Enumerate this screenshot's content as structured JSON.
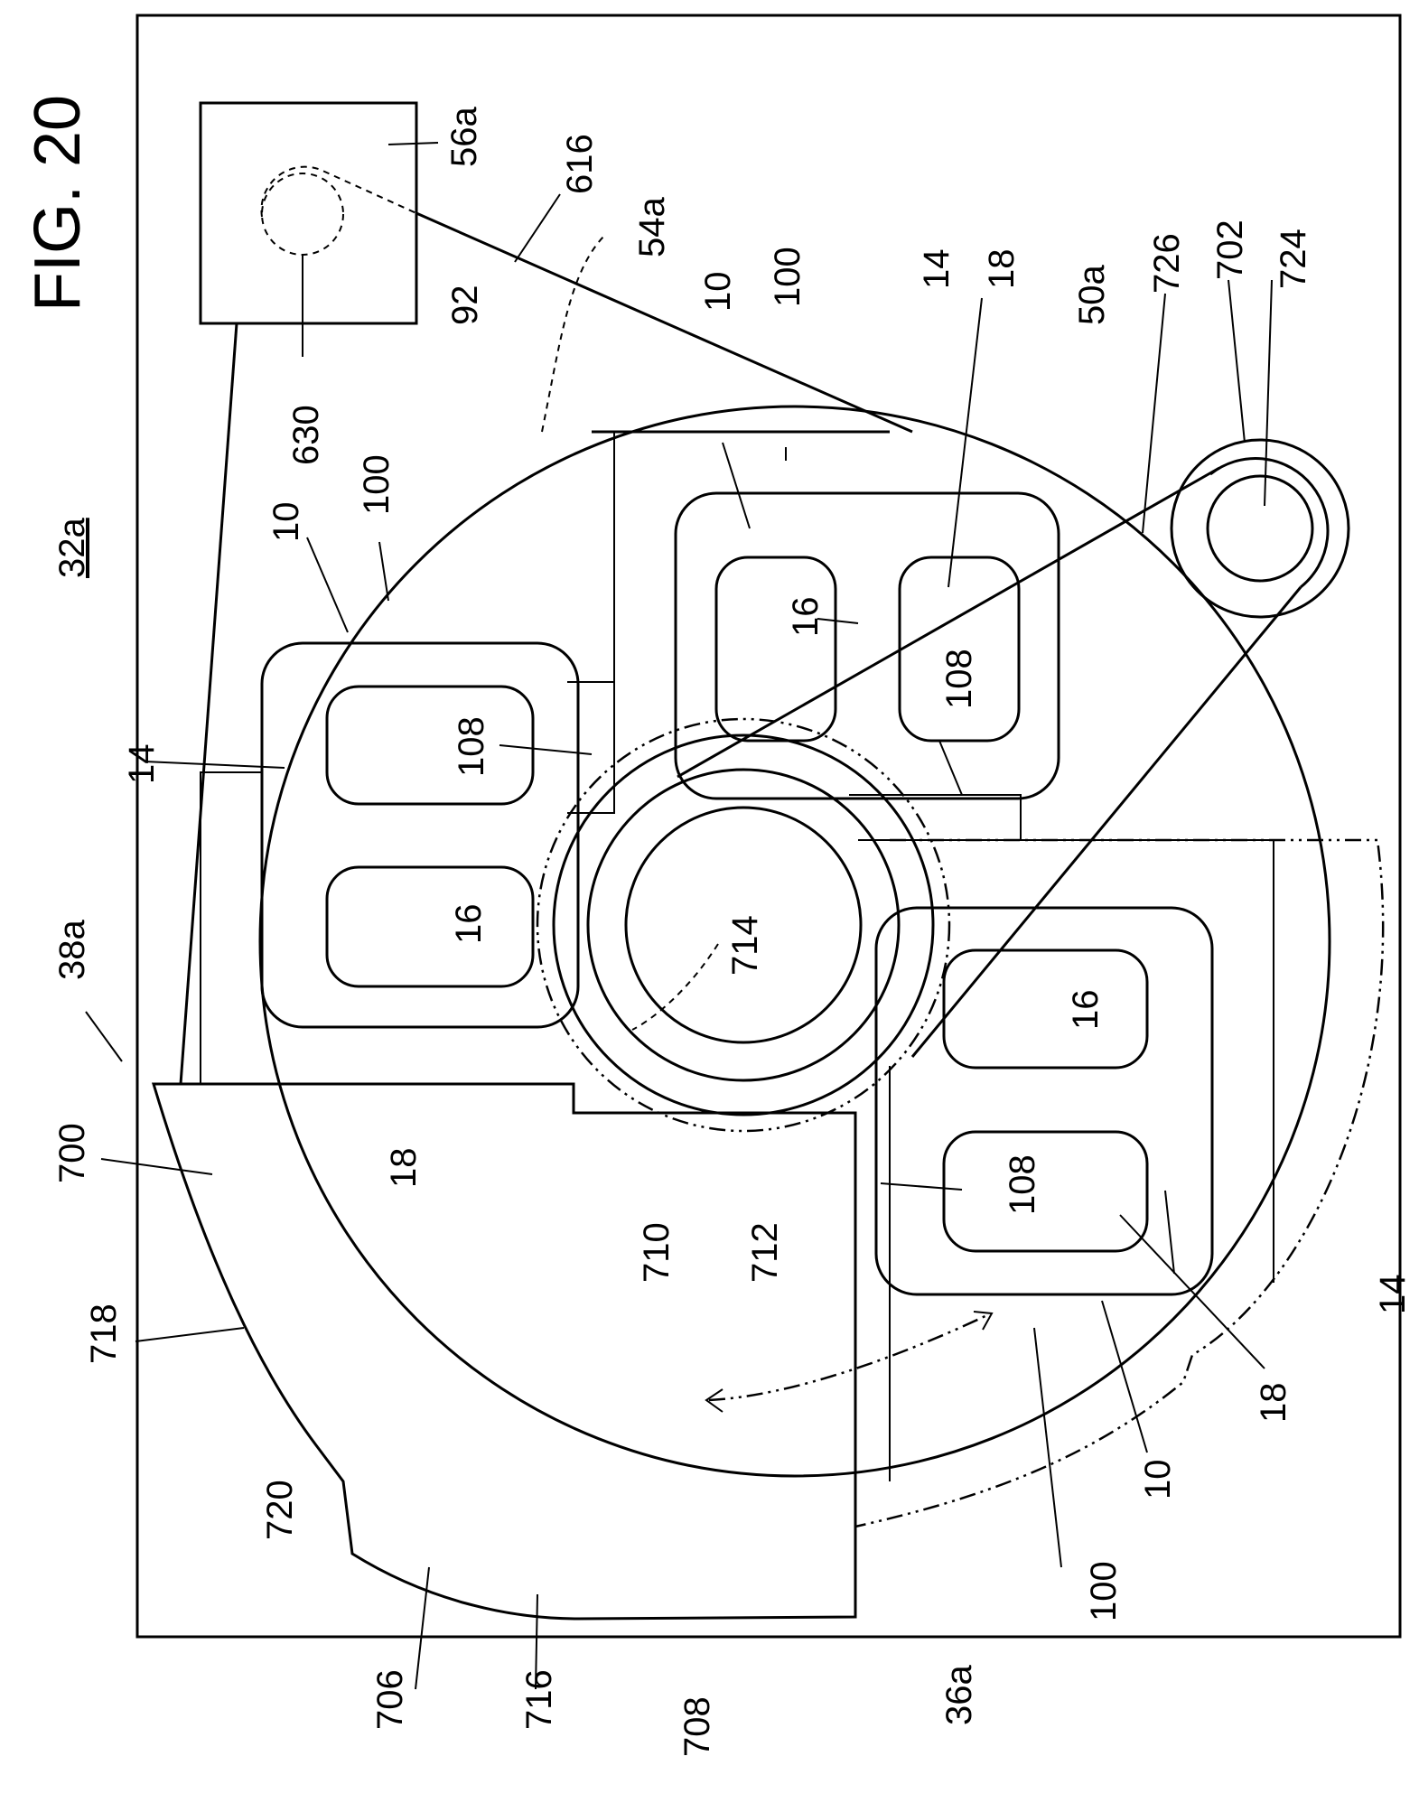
{
  "figure": {
    "title": "FIG. 20"
  },
  "labels": {
    "l_32a": "32a",
    "l_38a": "38a",
    "l_700": "700",
    "l_718": "718",
    "l_720": "720",
    "l_706": "706",
    "l_716": "716",
    "l_708": "708",
    "l_36a": "36a",
    "l_100_bottom": "100",
    "l_10_bottom": "10",
    "l_18_bottom": "18",
    "l_14_bottom": "14",
    "l_710": "710",
    "l_712": "712",
    "l_714": "714",
    "l_18_left": "18",
    "l_16_left": "16",
    "l_14_left": "14",
    "l_108_left": "108",
    "l_10_left": "10",
    "l_100_left": "100",
    "l_630": "630",
    "l_92": "92",
    "l_56a": "56a",
    "l_616": "616",
    "l_54a": "54a",
    "l_10_top": "10",
    "l_100_top": "100",
    "l_14_top": "14",
    "l_18_top": "18",
    "l_16_top": "16",
    "l_108_top": "108",
    "l_50a": "50a",
    "l_726": "726",
    "l_702": "702",
    "l_724": "724",
    "l_16_right": "16",
    "l_108_right": "108",
    "l_108_rightbottom": "108"
  }
}
